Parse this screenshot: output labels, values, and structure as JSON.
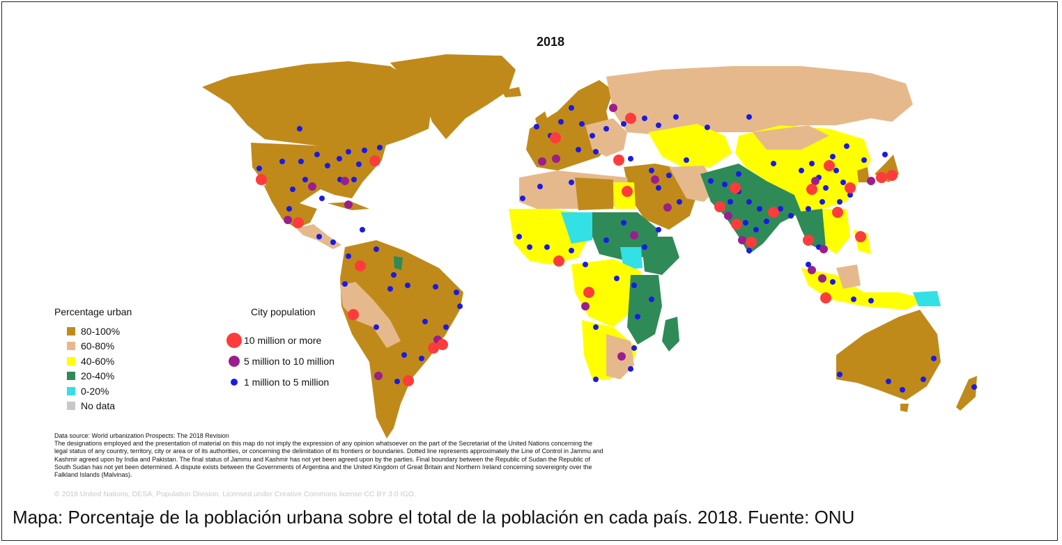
{
  "map": {
    "title": "2018",
    "colors": {
      "ocean": "#ffffff",
      "urban_80_100": "#c08a1a",
      "urban_60_80": "#e6b98c",
      "urban_40_60": "#ffff00",
      "urban_20_40": "#2e8b57",
      "urban_0_20": "#33e0e6",
      "no_data": "#c8c8c8",
      "city_10m": "#ff3b3b",
      "city_5m": "#9b1e8e",
      "city_1m": "#1a1ae6"
    }
  },
  "legend_percentage": {
    "title": "Percentage urban",
    "items": [
      {
        "label": "80-100%",
        "color": "#c08a1a"
      },
      {
        "label": "60-80%",
        "color": "#e6b98c"
      },
      {
        "label": "40-60%",
        "color": "#ffff00"
      },
      {
        "label": "20-40%",
        "color": "#2e8b57"
      },
      {
        "label": "0-20%",
        "color": "#33e0e6"
      },
      {
        "label": "No data",
        "color": "#c8c8c8"
      }
    ]
  },
  "legend_city": {
    "title": "City population",
    "items": [
      {
        "label": "10 million or more",
        "color": "#ff3b3b"
      },
      {
        "label": "5 million to 10 million",
        "color": "#9b1e8e"
      },
      {
        "label": "1 million to 5 million",
        "color": "#1a1ae6"
      }
    ]
  },
  "notes": {
    "source": "Data source: World urbanization Prospects: The 2018 Revision",
    "disclaimer": "The designations employed and the presentation of material on this map do not imply the expression of any opinion whatsoever on the part of the Secretariat of the United Nations concerning the legal status of any country, territory, city or area or of its authorities, or concerning the delimitation of its frontiers or boundaries. Dotted line represents approximately the Line of Control in Jammu and Kashmir agreed upon by India and Pakistan. The final status of Jammu and Kashmir has not yet been agreed upon by the parties. Final boundary between the Republic of Sudan the Republic of South Sudan has not yet been determined. A dispute exists between the Governments of Argentina and the United Kingdom of Great Britain and Northern Ireland concerning sovereignty over the Falkland Islands (Malvinas).",
    "copyright": "© 2018 United Nations, DESA, Population Division. Licensed under Creative Commons license CC BY 3.0 IGO."
  },
  "caption": "Mapa: Porcentaje de la población urbana sobre el total de la población en cada país. 2018. Fuente: ONU"
}
